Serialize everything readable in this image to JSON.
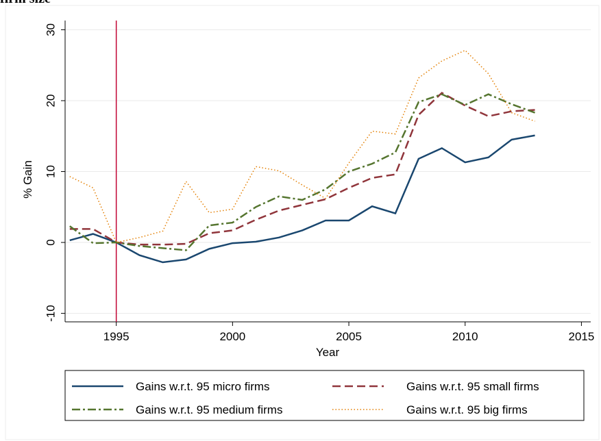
{
  "chart_data": {
    "type": "line",
    "title": "firm size",
    "x": [
      1993,
      1994,
      1995,
      1996,
      1997,
      1998,
      1999,
      2000,
      2001,
      2002,
      2003,
      2004,
      2005,
      2006,
      2007,
      2008,
      2009,
      2010,
      2011,
      2012,
      2013
    ],
    "series": [
      {
        "name": "Gains w.r.t. 95 micro firms",
        "color": "#1a476f",
        "dash": "solid",
        "values": [
          0.3,
          1.2,
          0,
          -1.8,
          -2.8,
          -2.4,
          -0.9,
          -0.1,
          0.1,
          0.7,
          1.7,
          3.1,
          3.1,
          5.1,
          4.1,
          11.8,
          13.3,
          11.3,
          12.0,
          14.5,
          15.1
        ]
      },
      {
        "name": "Gains w.r.t. 95 small firms",
        "color": "#90353b",
        "dash": "dash",
        "values": [
          1.9,
          1.9,
          0,
          -0.3,
          -0.3,
          -0.2,
          1.3,
          1.7,
          3.2,
          4.5,
          5.3,
          6.1,
          7.7,
          9.1,
          9.6,
          18.0,
          21.1,
          19.3,
          17.8,
          18.5,
          18.7
        ]
      },
      {
        "name": "Gains w.r.t. 95 medium firms",
        "color": "#55752f",
        "dash": "dashdot",
        "values": [
          2.3,
          -0.1,
          0,
          -0.5,
          -0.8,
          -1.1,
          2.4,
          2.8,
          5.0,
          6.5,
          6.0,
          7.5,
          10.0,
          11.1,
          12.7,
          19.8,
          20.9,
          19.4,
          20.9,
          19.5,
          18.3
        ]
      },
      {
        "name": "Gains w.r.t. 95 big firms",
        "color": "#e37e00",
        "dash": "dot",
        "values": [
          9.3,
          7.7,
          0,
          0.7,
          1.6,
          8.6,
          4.2,
          4.7,
          10.7,
          10.1,
          8.1,
          6.2,
          11.2,
          15.7,
          15.3,
          23.2,
          25.6,
          27.1,
          23.8,
          18.3,
          17.1
        ]
      }
    ],
    "x_label": "Year",
    "y_label": "% Gain",
    "xlim": [
      1992.8,
      2015.4
    ],
    "xticks": [
      1995,
      2000,
      2005,
      2010,
      2015
    ],
    "ylim": [
      -11.2,
      31.3
    ],
    "yticks": [
      -10,
      0,
      10,
      20,
      30
    ],
    "xline": 1995,
    "xline_color": "#c10534",
    "grid": true
  }
}
